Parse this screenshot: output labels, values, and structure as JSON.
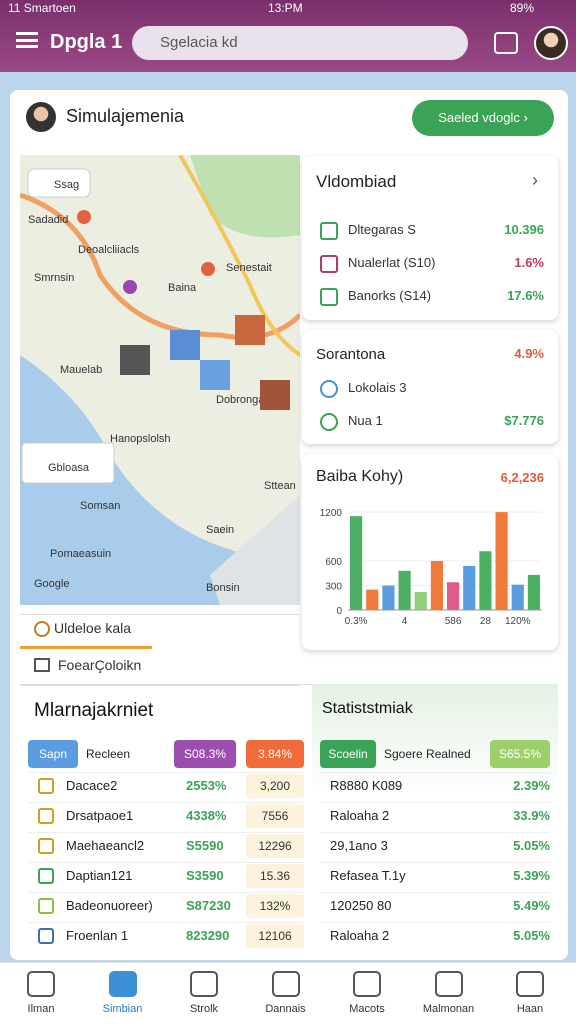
{
  "status_bar": {
    "carrier": "11 Smartoen",
    "time": "13:PM",
    "battery": "89%"
  },
  "app_bar": {
    "title": "Dpgla 1",
    "search": "Sgelacia kd"
  },
  "header": {
    "title": "Simulajemenia",
    "button": "Saeled vdoglc"
  },
  "map": {
    "search": "Ssag",
    "labels": [
      "Sadadid",
      "Deoalcliiacls",
      "Smrnsin",
      "Baina",
      "Senestait",
      "Mauelab",
      "Dobrongall",
      "Hanopslolsh",
      "Sttean",
      "Saein",
      "Somsan",
      "Bonsin",
      "Pomaeasuin",
      "Google"
    ],
    "legend": "Gbloasa"
  },
  "summary_card": {
    "title": "Vldombiad",
    "rows": [
      {
        "label": "Dltegaras S",
        "value": "10.396"
      },
      {
        "label": "Nualerlat (S10)",
        "value": "1.6%"
      },
      {
        "label": "Banorks (S14)",
        "value": "17.6%"
      }
    ]
  },
  "alert_card": {
    "title": "Sorantona",
    "value": "4.9%",
    "rows": [
      {
        "label": "Lokolais 3"
      },
      {
        "label": "Nua 1",
        "value": "$7.776"
      }
    ]
  },
  "chart_card": {
    "title": "Baiba Kohy)",
    "value": "6,2,236"
  },
  "chart_data": {
    "type": "bar",
    "categories": [
      "0.3%",
      null,
      null,
      "4",
      null,
      null,
      "586",
      null,
      "28",
      null,
      "120%",
      null
    ],
    "values": [
      1150,
      250,
      300,
      480,
      220,
      600,
      340,
      540,
      720,
      1200,
      310,
      430
    ],
    "colors": [
      "#4caf63",
      "#f07a3a",
      "#5b9be0",
      "#4caf63",
      "#8fd07a",
      "#f07a3a",
      "#e05a8a",
      "#5b9be0",
      "#4caf63",
      "#f07a3a",
      "#5b9be0",
      "#4caf63"
    ],
    "ylim": [
      0,
      1250
    ],
    "yticks": [
      0,
      300,
      600,
      1200
    ]
  },
  "tabs": [
    "Uldeloe kala",
    "FoearÇoloikn"
  ],
  "left_panel": {
    "title": "Mlarnajakrniet",
    "header": [
      "Sapn",
      "Recleen",
      "S08.3%",
      "3.84%"
    ],
    "rows": [
      [
        "Dacace2",
        "2553%",
        "3,200"
      ],
      [
        "Drsatpaoe1",
        "4338%",
        "7556"
      ],
      [
        "Maehaeancl2",
        "S5590",
        "12296"
      ],
      [
        "Daptian121",
        "S3590",
        "15.36"
      ],
      [
        "Badeonuoreer)",
        "S87230",
        "132%"
      ],
      [
        "Froenlan 1",
        "823290",
        "12106"
      ]
    ]
  },
  "right_panel": {
    "title": "Statiststmiak",
    "header": [
      "Scoelin",
      "Sgoere Realned",
      "S65.5%"
    ],
    "rows": [
      [
        "R8880 K089",
        "2.39%"
      ],
      [
        "Raloaha 2",
        "33.9%"
      ],
      [
        "29,1ano 3",
        "5.05%"
      ],
      [
        "Refasea T.1y",
        "5.39%"
      ],
      [
        "120250 80",
        "5.49%"
      ],
      [
        "Raloaha 2",
        "5.05%"
      ]
    ]
  },
  "nav": [
    "Ilman",
    "Simbian",
    "Strolk",
    "Dannais",
    "Macots",
    "Malmonan",
    "Haan"
  ]
}
